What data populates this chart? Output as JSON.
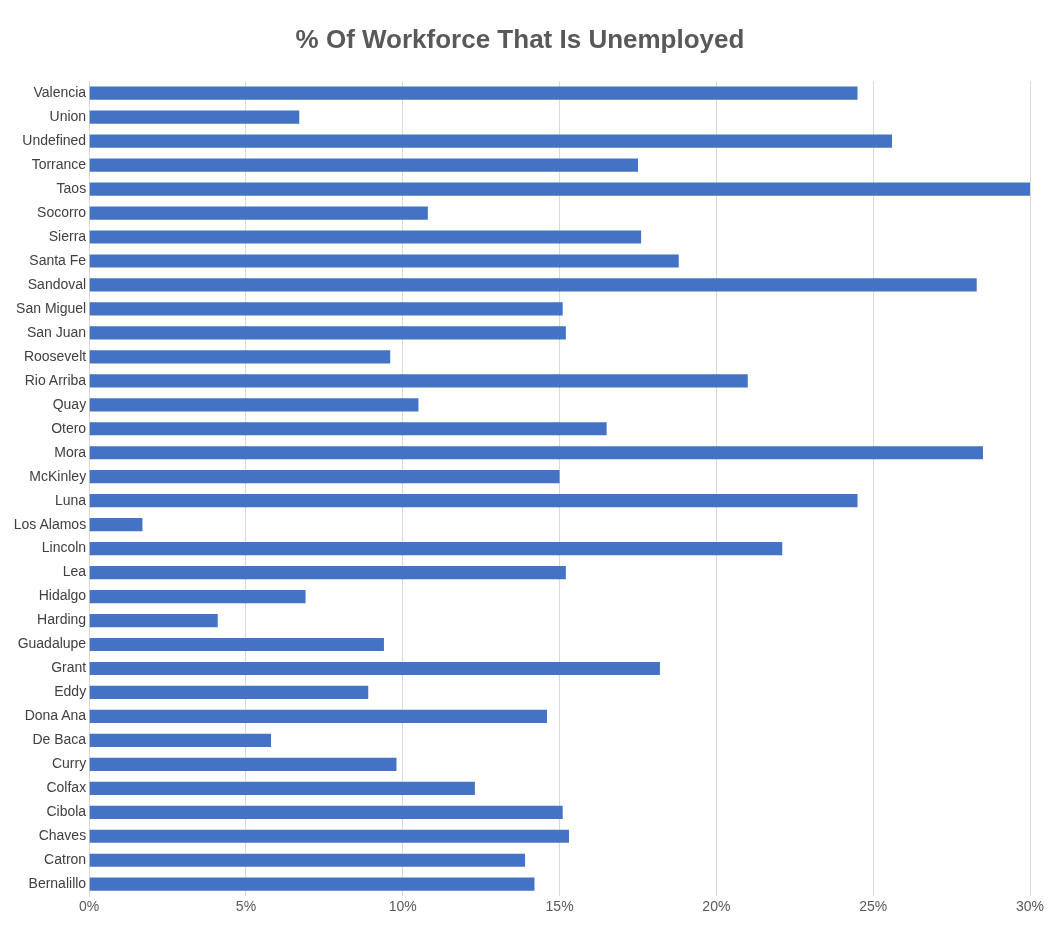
{
  "chart_data": {
    "type": "bar",
    "orientation": "horizontal",
    "title": "% Of Workforce That Is Unemployed",
    "categories": [
      "Valencia",
      "Union",
      "Undefined",
      "Torrance",
      "Taos",
      "Socorro",
      "Sierra",
      "Santa Fe",
      "Sandoval",
      "San Miguel",
      "San Juan",
      "Roosevelt",
      "Rio Arriba",
      "Quay",
      "Otero",
      "Mora",
      "McKinley",
      "Luna",
      "Los Alamos",
      "Lincoln",
      "Lea",
      "Hidalgo",
      "Harding",
      "Guadalupe",
      "Grant",
      "Eddy",
      "Dona Ana",
      "De Baca",
      "Curry",
      "Colfax",
      "Cibola",
      "Chaves",
      "Catron",
      "Bernalillo"
    ],
    "values": [
      24.5,
      6.7,
      25.6,
      17.5,
      30.0,
      10.8,
      17.6,
      18.8,
      28.3,
      15.1,
      15.2,
      9.6,
      21.0,
      10.5,
      16.5,
      28.5,
      15.0,
      24.5,
      1.7,
      22.1,
      15.2,
      6.9,
      4.1,
      9.4,
      18.2,
      8.9,
      14.6,
      5.8,
      9.8,
      12.3,
      15.1,
      15.3,
      13.9,
      14.2
    ],
    "color": "#4472c4",
    "xlim": [
      0,
      30
    ],
    "xticks": [
      {
        "value": 0,
        "label": "0%"
      },
      {
        "value": 5,
        "label": "5%"
      },
      {
        "value": 10,
        "label": "10%"
      },
      {
        "value": 15,
        "label": "15%"
      },
      {
        "value": 20,
        "label": "20%"
      },
      {
        "value": 25,
        "label": "25%"
      },
      {
        "value": 30,
        "label": "30%"
      }
    ],
    "grid": "x"
  }
}
